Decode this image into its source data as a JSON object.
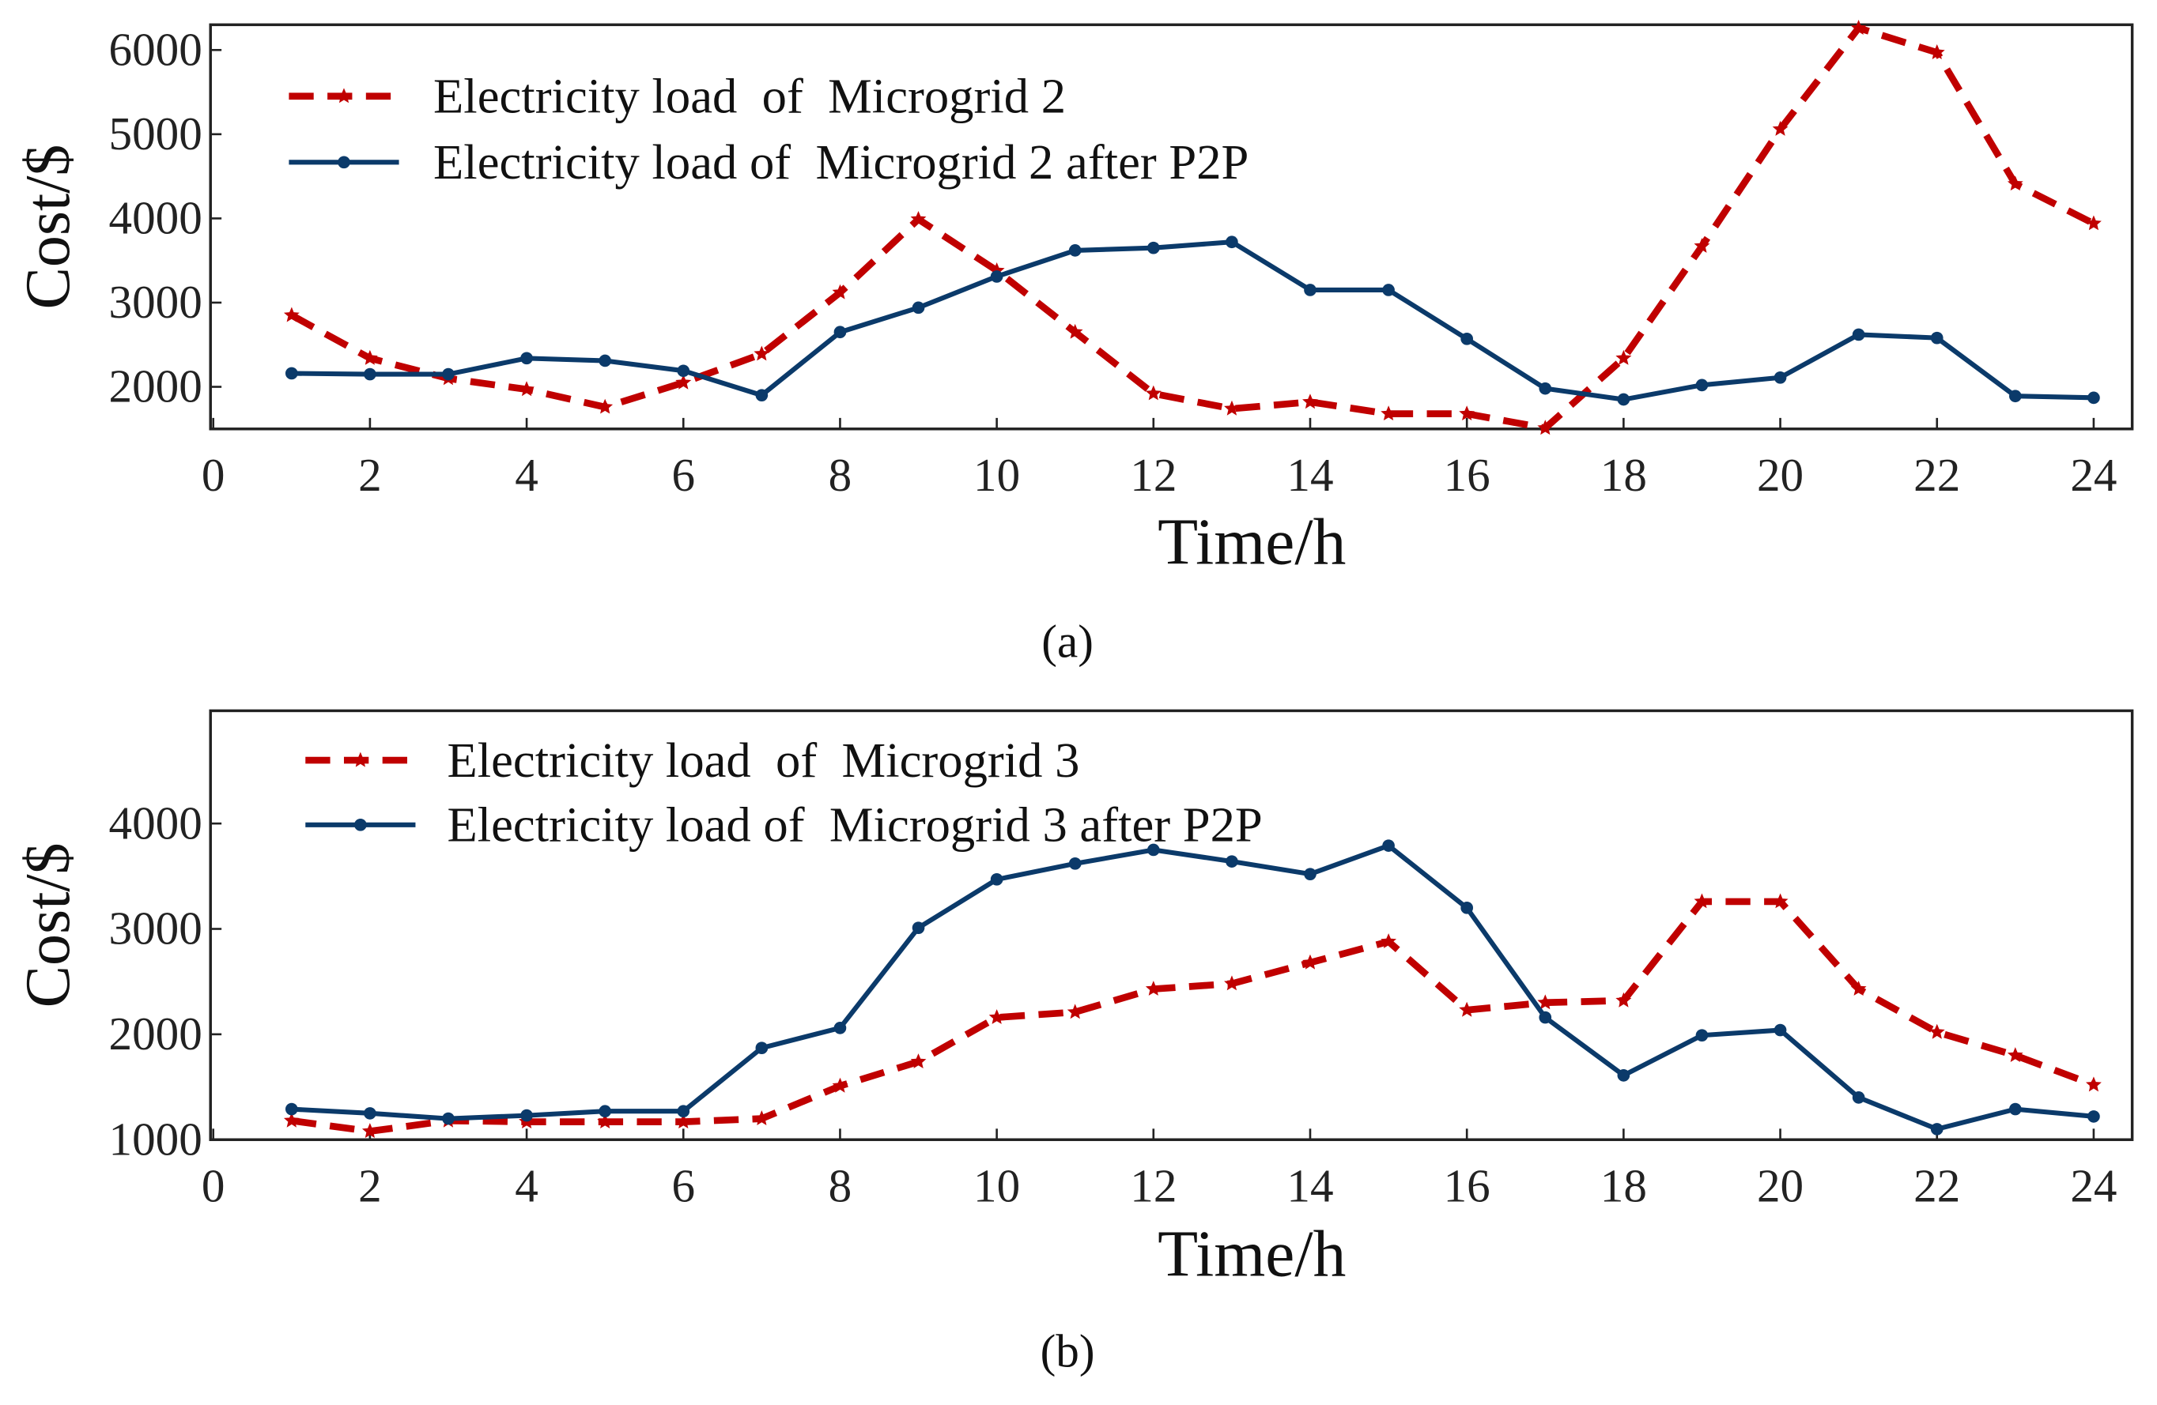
{
  "colors": {
    "red": "#C00000",
    "blue": "#0B3A6A",
    "axis": "#222222"
  },
  "chart_data": [
    {
      "type": "line",
      "panel_label": "(a)",
      "xlabel": "Time/h",
      "ylabel": "Cost/$",
      "xlim": [
        0,
        24.5
      ],
      "ylim": [
        1500,
        6300
      ],
      "xticks": [
        0,
        2,
        4,
        6,
        8,
        10,
        12,
        14,
        16,
        18,
        20,
        22,
        24
      ],
      "yticks": [
        2000,
        3000,
        4000,
        5000,
        6000
      ],
      "grid": false,
      "legend_position": "top-left",
      "x": [
        1,
        2,
        3,
        4,
        5,
        6,
        7,
        8,
        9,
        10,
        11,
        12,
        13,
        14,
        15,
        16,
        17,
        18,
        19,
        20,
        21,
        22,
        23,
        24
      ],
      "series": [
        {
          "name": "Electricity load  of  Microgrid 2",
          "style": "dashed-star",
          "color": "#C00000",
          "values": [
            2850,
            2340,
            2100,
            1970,
            1760,
            2050,
            2390,
            3120,
            3990,
            3380,
            2650,
            1920,
            1740,
            1820,
            1680,
            1680,
            1510,
            2340,
            3670,
            5060,
            6260,
            5970,
            4410,
            3940
          ]
        },
        {
          "name": "Electricity load of  Microgrid 2 after P2P",
          "style": "solid-dot",
          "color": "#0B3A6A",
          "values": [
            2160,
            2150,
            2150,
            2340,
            2310,
            2190,
            1900,
            2650,
            2940,
            3310,
            3620,
            3650,
            3720,
            3150,
            3150,
            2570,
            1980,
            1850,
            2020,
            2110,
            2620,
            2580,
            1890,
            1870
          ]
        }
      ]
    },
    {
      "type": "line",
      "panel_label": "(b)",
      "xlabel": "Time/h",
      "ylabel": "Cost/$",
      "xlim": [
        0,
        24.5
      ],
      "ylim": [
        1000,
        5070
      ],
      "xticks": [
        0,
        2,
        4,
        6,
        8,
        10,
        12,
        14,
        16,
        18,
        20,
        22,
        24
      ],
      "yticks": [
        1000,
        2000,
        3000,
        4000
      ],
      "grid": false,
      "legend_position": "top-left",
      "x": [
        1,
        2,
        3,
        4,
        5,
        6,
        7,
        8,
        9,
        10,
        11,
        12,
        13,
        14,
        15,
        16,
        17,
        18,
        19,
        20,
        21,
        22,
        23,
        24
      ],
      "series": [
        {
          "name": "Electricity load  of  Microgrid 3",
          "style": "dashed-star",
          "color": "#C00000",
          "values": [
            1180,
            1080,
            1180,
            1170,
            1170,
            1170,
            1200,
            1510,
            1740,
            2160,
            2210,
            2430,
            2480,
            2680,
            2880,
            2230,
            2300,
            2320,
            3260,
            3260,
            2430,
            2020,
            1800,
            1520
          ]
        },
        {
          "name": "Electricity load of  Microgrid 3 after P2P",
          "style": "solid-dot",
          "color": "#0B3A6A",
          "values": [
            1290,
            1250,
            1200,
            1230,
            1270,
            1270,
            1870,
            2060,
            3010,
            3470,
            3620,
            3750,
            3640,
            3520,
            3790,
            3200,
            2160,
            1610,
            1990,
            2040,
            1400,
            1100,
            1290,
            1220
          ]
        }
      ]
    }
  ]
}
